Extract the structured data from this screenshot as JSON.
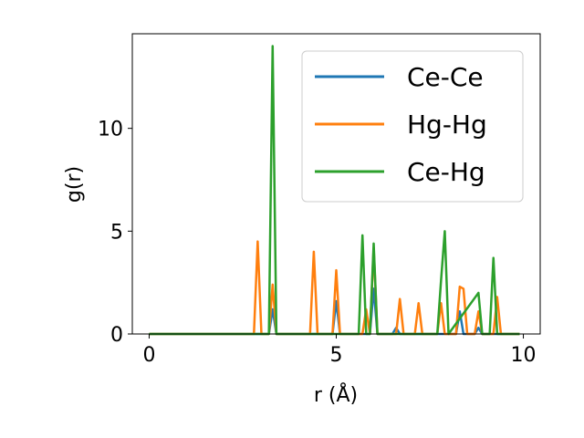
{
  "chart_data": {
    "type": "line",
    "title": "",
    "xlabel": "r (Å)",
    "ylabel": "g(r)",
    "xlim": [
      -0.45,
      10.45
    ],
    "ylim": [
      0,
      14.6
    ],
    "xticks": [
      0,
      5,
      10
    ],
    "yticks": [
      0,
      5,
      10
    ],
    "xtick_labels": [
      "0",
      "5",
      "10"
    ],
    "ytick_labels": [
      "0",
      "5",
      "10"
    ],
    "grid": false,
    "legend_position": "top-right",
    "series": [
      {
        "name": "Ce-Ce",
        "color": "#1f77b4",
        "points": [
          [
            0,
            0
          ],
          [
            3.2,
            0
          ],
          [
            3.3,
            1.2
          ],
          [
            3.4,
            0
          ],
          [
            4.9,
            0
          ],
          [
            5.0,
            1.6
          ],
          [
            5.1,
            0
          ],
          [
            5.9,
            0
          ],
          [
            6.0,
            2.2
          ],
          [
            6.1,
            0
          ],
          [
            6.5,
            0
          ],
          [
            6.6,
            0.3
          ],
          [
            6.7,
            0
          ],
          [
            8.2,
            0
          ],
          [
            8.3,
            1.1
          ],
          [
            8.4,
            0
          ],
          [
            8.7,
            0
          ],
          [
            8.8,
            0.3
          ],
          [
            8.9,
            0
          ],
          [
            9.9,
            0
          ]
        ]
      },
      {
        "name": "Hg-Hg",
        "color": "#ff7f0e",
        "points": [
          [
            0,
            0
          ],
          [
            2.8,
            0
          ],
          [
            2.9,
            4.5
          ],
          [
            3.0,
            0
          ],
          [
            3.2,
            0
          ],
          [
            3.3,
            2.4
          ],
          [
            3.4,
            0
          ],
          [
            4.3,
            0
          ],
          [
            4.4,
            4.0
          ],
          [
            4.5,
            0
          ],
          [
            4.9,
            0
          ],
          [
            5.0,
            3.1
          ],
          [
            5.1,
            0
          ],
          [
            5.7,
            0
          ],
          [
            5.8,
            1.2
          ],
          [
            5.9,
            0
          ],
          [
            6.0,
            4.2
          ],
          [
            6.1,
            0
          ],
          [
            6.6,
            0
          ],
          [
            6.7,
            1.7
          ],
          [
            6.8,
            0
          ],
          [
            7.1,
            0
          ],
          [
            7.2,
            1.5
          ],
          [
            7.3,
            0
          ],
          [
            7.7,
            0
          ],
          [
            7.8,
            1.5
          ],
          [
            7.9,
            0
          ],
          [
            8.2,
            0
          ],
          [
            8.3,
            2.3
          ],
          [
            8.4,
            2.2
          ],
          [
            8.5,
            0
          ],
          [
            8.7,
            0
          ],
          [
            8.8,
            1.1
          ],
          [
            8.9,
            0
          ],
          [
            9.2,
            0
          ],
          [
            9.3,
            1.8
          ],
          [
            9.4,
            0
          ],
          [
            9.9,
            0
          ]
        ]
      },
      {
        "name": "Ce-Hg",
        "color": "#2ca02c",
        "points": [
          [
            0,
            0
          ],
          [
            3.2,
            0
          ],
          [
            3.3,
            14.0
          ],
          [
            3.4,
            0
          ],
          [
            5.6,
            0
          ],
          [
            5.7,
            4.8
          ],
          [
            5.8,
            0
          ],
          [
            5.9,
            0
          ],
          [
            6.0,
            4.4
          ],
          [
            6.1,
            0
          ],
          [
            7.7,
            0
          ],
          [
            7.8,
            2.6
          ],
          [
            7.9,
            5.0
          ],
          [
            8.0,
            0
          ],
          [
            8.8,
            2.0
          ],
          [
            8.9,
            0
          ],
          [
            9.1,
            0
          ],
          [
            9.2,
            3.7
          ],
          [
            9.3,
            0
          ],
          [
            9.9,
            0
          ]
        ]
      }
    ]
  }
}
